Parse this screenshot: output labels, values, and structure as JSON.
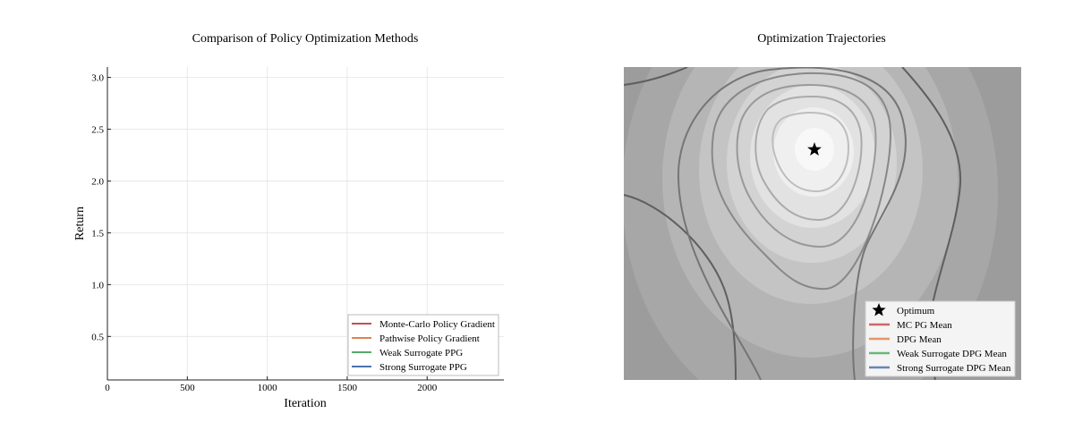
{
  "chart_data": [
    {
      "type": "line",
      "title": "Comparison of Policy Optimization Methods",
      "xlabel": "Iteration",
      "ylabel": "Return",
      "xlim": [
        0,
        2480
      ],
      "ylim": [
        0.08,
        3.1
      ],
      "xticks": [
        0,
        500,
        1000,
        1500,
        2000
      ],
      "yticks": [
        0.5,
        1.0,
        1.5,
        2.0,
        2.5,
        3.0
      ],
      "xtick_labels": [
        "0",
        "500",
        "1000",
        "1500",
        "2000"
      ],
      "ytick_labels": [
        "0.5",
        "1.0",
        "1.5",
        "2.0",
        "2.5",
        "3.0"
      ],
      "grid": true,
      "legend_position": "lower-right",
      "series": [
        {
          "name": "Monte-Carlo Policy Gradient",
          "color": "#c44e52",
          "x": [],
          "y": []
        },
        {
          "name": "Pathwise Policy Gradient",
          "color": "#dd8452",
          "x": [],
          "y": []
        },
        {
          "name": "Weak Surrogate PPG",
          "color": "#55a868",
          "x": [],
          "y": []
        },
        {
          "name": "Strong Surrogate PPG",
          "color": "#4c72b0",
          "x": [],
          "y": []
        }
      ]
    },
    {
      "type": "contour",
      "title": "Optimization Trajectories",
      "grid": false,
      "legend_position": "lower-right",
      "colormap": "gray",
      "optimum_marker": "star",
      "series": [
        {
          "name": "Optimum",
          "color": "#000000",
          "marker": "star"
        },
        {
          "name": "MC PG Mean",
          "color": "#c44e52"
        },
        {
          "name": "DPG Mean",
          "color": "#dd8452"
        },
        {
          "name": "Weak Surrogate DPG Mean",
          "color": "#55a868"
        },
        {
          "name": "Strong Surrogate DPG Mean",
          "color": "#4c72b0"
        }
      ]
    }
  ]
}
